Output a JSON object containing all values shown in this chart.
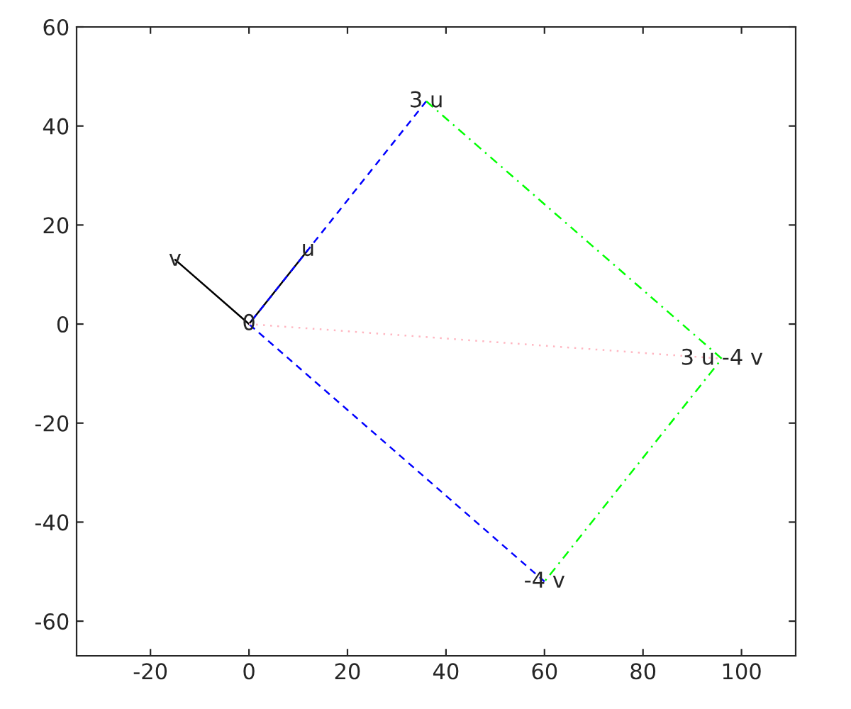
{
  "chart_data": {
    "type": "line",
    "xlim": [
      -35,
      111
    ],
    "ylim": [
      -67,
      60
    ],
    "xticks": [
      -20,
      0,
      20,
      40,
      60,
      80,
      100
    ],
    "yticks": [
      -60,
      -40,
      -20,
      0,
      20,
      40,
      60
    ],
    "grid": false,
    "legend": false,
    "marker": "none",
    "series": [
      {
        "color": "#000000",
        "line_style": "solid",
        "x": [
          0,
          12
        ],
        "values": [
          0,
          15
        ]
      },
      {
        "color": "#000000",
        "line_style": "solid",
        "x": [
          0,
          -15
        ],
        "values": [
          0,
          13
        ]
      },
      {
        "color": "#0000ff",
        "line_style": "dashed",
        "x": [
          36,
          0,
          60
        ],
        "values": [
          45,
          0,
          -52
        ]
      },
      {
        "color": "#00ff00",
        "line_style": "dashdot",
        "x": [
          36,
          96,
          60
        ],
        "values": [
          45,
          -7,
          -52
        ]
      },
      {
        "color": "#ffb6c1",
        "line_style": "dotted",
        "x": [
          0,
          96
        ],
        "values": [
          0,
          -7
        ]
      }
    ],
    "annotations": [
      {
        "text": "0",
        "x": 0,
        "y": 0
      },
      {
        "text": "u",
        "x": 12,
        "y": 15
      },
      {
        "text": "v",
        "x": -15,
        "y": 13
      },
      {
        "text": "3 u",
        "x": 36,
        "y": 45
      },
      {
        "text": "-4 v",
        "x": 60,
        "y": -52
      },
      {
        "text": "3 u -4 v",
        "x": 96,
        "y": -7
      }
    ]
  }
}
